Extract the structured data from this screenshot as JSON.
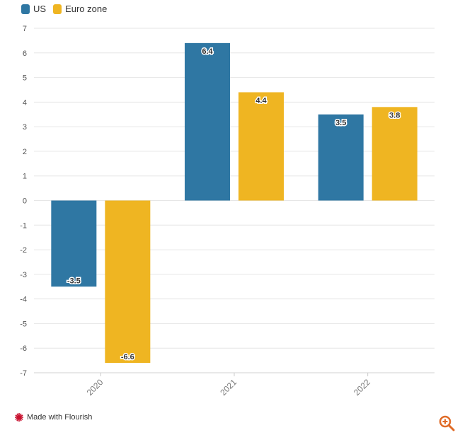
{
  "chart_data": {
    "type": "bar",
    "categories": [
      "2020",
      "2021",
      "2022"
    ],
    "series": [
      {
        "name": "US",
        "values": [
          -3.5,
          6.4,
          3.5
        ],
        "color": "#2f77a3"
      },
      {
        "name": "Euro zone",
        "values": [
          -6.6,
          4.4,
          3.8
        ],
        "color": "#efb522"
      }
    ],
    "ylim": [
      -7,
      7
    ],
    "yticks": [
      7,
      6,
      5,
      4,
      3,
      2,
      1,
      0,
      -1,
      -2,
      -3,
      -4,
      -5,
      -6,
      -7
    ],
    "grid": true,
    "legend_position": "top-left",
    "title": "",
    "xlabel": "",
    "ylabel": ""
  },
  "footer": {
    "label": "Made with Flourish",
    "logo_icon": "flourish-logo-icon",
    "accent_color": "#c8102e"
  },
  "controls": {
    "zoom_icon": "zoom-in-icon",
    "zoom_color": "#e06b27"
  }
}
